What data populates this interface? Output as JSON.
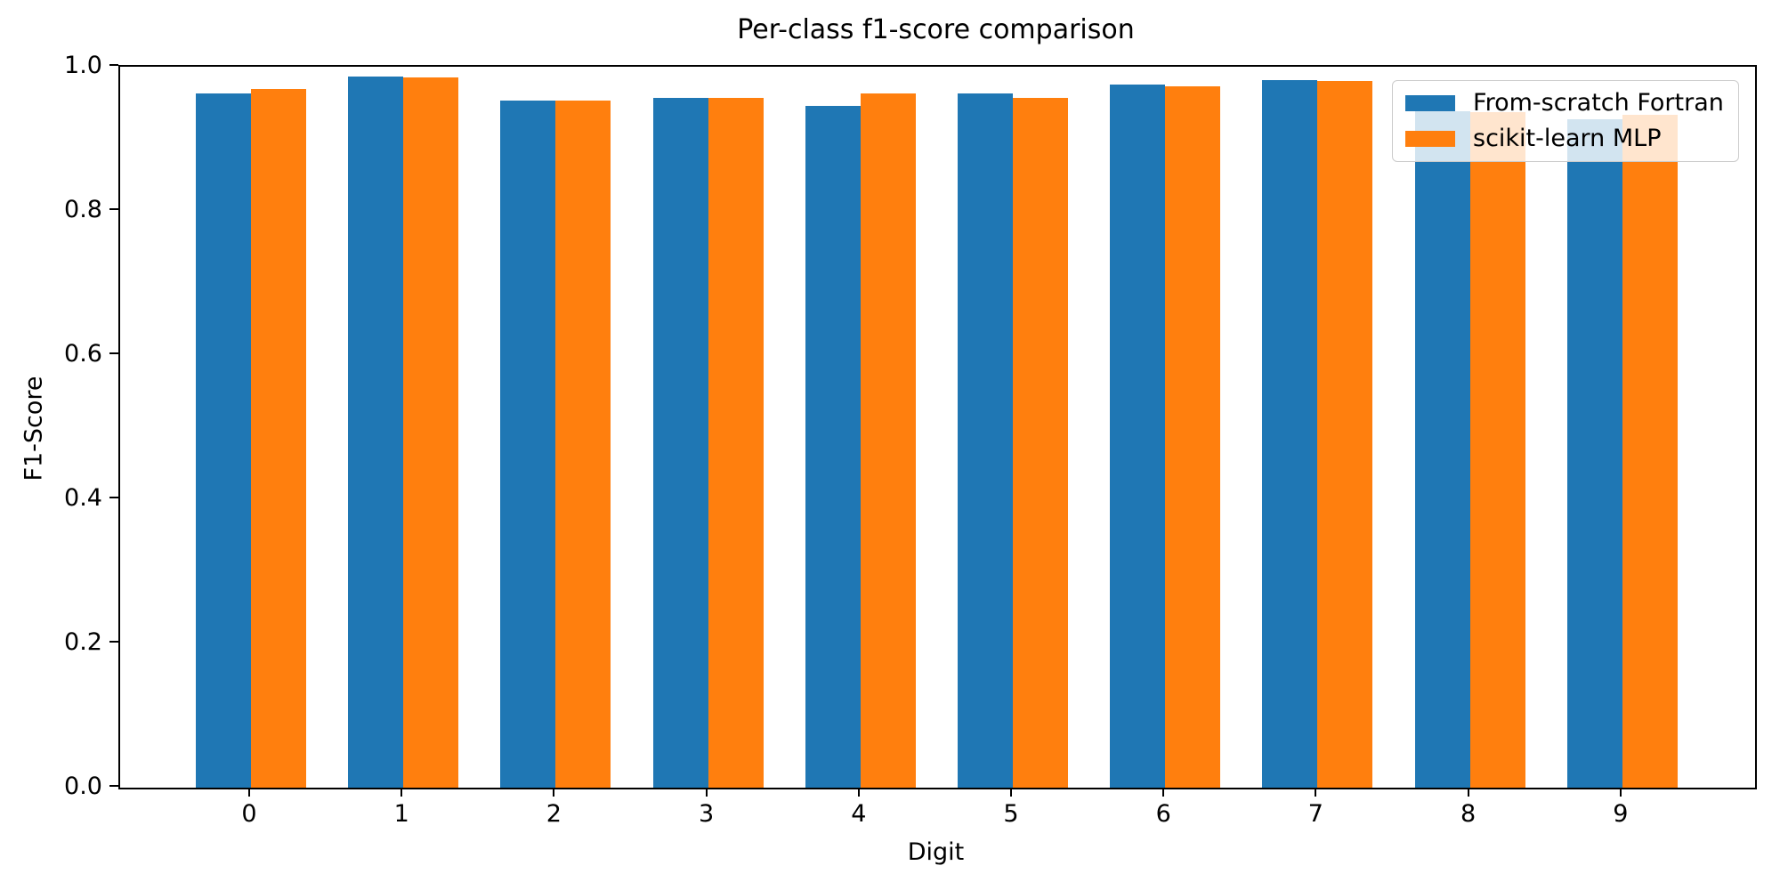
{
  "chart_data": {
    "type": "bar",
    "title": "Per-class f1-score comparison",
    "xlabel": "Digit",
    "ylabel": "F1-Score",
    "categories": [
      "0",
      "1",
      "2",
      "3",
      "4",
      "5",
      "6",
      "7",
      "8",
      "9"
    ],
    "series": [
      {
        "name": "From-scratch Fortran",
        "color": "#1f77b4",
        "values": [
          0.963,
          0.986,
          0.953,
          0.957,
          0.946,
          0.963,
          0.975,
          0.982,
          0.938,
          0.927
        ]
      },
      {
        "name": "scikit-learn MLP",
        "color": "#ff7f0e",
        "values": [
          0.969,
          0.985,
          0.953,
          0.957,
          0.963,
          0.957,
          0.973,
          0.98,
          0.937,
          0.933
        ]
      }
    ],
    "ylim": [
      0.0,
      1.0
    ],
    "yticks": [
      "0.0",
      "0.2",
      "0.4",
      "0.6",
      "0.8",
      "1.0"
    ],
    "grid": false,
    "legend_position": "upper right",
    "bar_width": 0.35
  }
}
